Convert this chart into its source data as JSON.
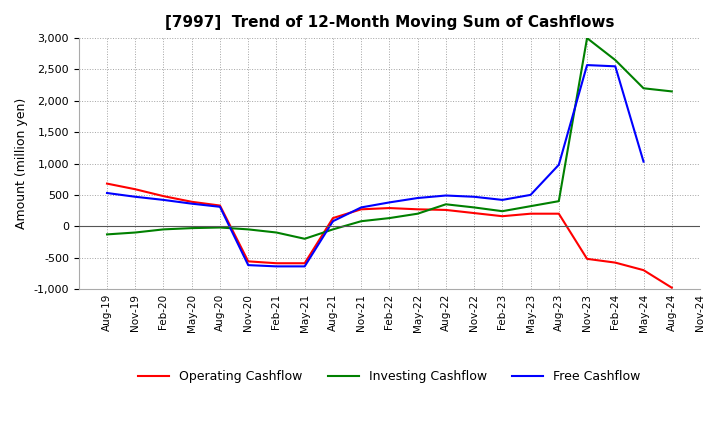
{
  "title": "[7997]  Trend of 12-Month Moving Sum of Cashflows",
  "ylabel": "Amount (million yen)",
  "ylim": [
    -1000,
    3000
  ],
  "yticks": [
    -1000,
    -500,
    0,
    500,
    1000,
    1500,
    2000,
    2500,
    3000
  ],
  "legend_labels": [
    "Operating Cashflow",
    "Investing Cashflow",
    "Free Cashflow"
  ],
  "legend_colors": [
    "#ff0000",
    "#008000",
    "#0000ff"
  ],
  "x_labels": [
    "Aug-19",
    "Nov-19",
    "Feb-20",
    "May-20",
    "Aug-20",
    "Nov-20",
    "Feb-21",
    "May-21",
    "Aug-21",
    "Nov-21",
    "Feb-22",
    "May-22",
    "Aug-22",
    "Nov-22",
    "Feb-23",
    "May-23",
    "Aug-23",
    "Nov-23",
    "Feb-24",
    "May-24",
    "Aug-24",
    "Nov-24"
  ],
  "operating": [
    680,
    590,
    480,
    390,
    330,
    -560,
    -590,
    -590,
    130,
    270,
    290,
    270,
    260,
    210,
    160,
    200,
    200,
    -520,
    -580,
    -700,
    -980,
    null
  ],
  "investing": [
    -130,
    -100,
    -50,
    -30,
    -20,
    -50,
    -100,
    -200,
    -50,
    80,
    130,
    200,
    350,
    300,
    240,
    320,
    400,
    3000,
    2650,
    2200,
    2150,
    null
  ],
  "free": [
    530,
    470,
    420,
    360,
    310,
    -620,
    -640,
    -640,
    80,
    300,
    380,
    450,
    490,
    470,
    420,
    500,
    980,
    2570,
    2550,
    1030,
    null,
    null
  ],
  "background_color": "#ffffff",
  "grid_color": "#999999"
}
